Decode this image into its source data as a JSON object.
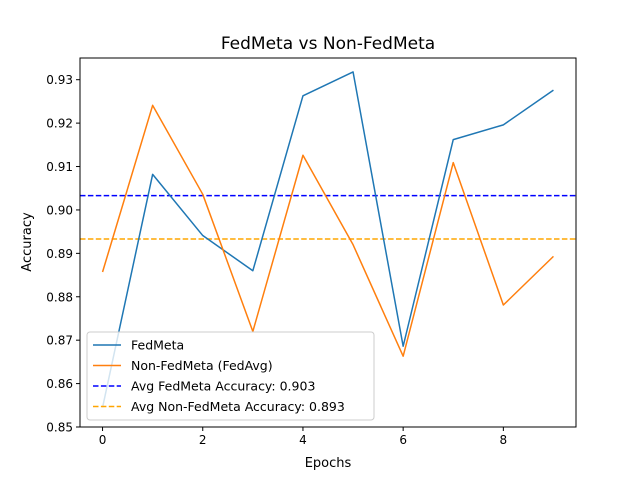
{
  "chart_data": {
    "type": "line",
    "title": "FedMeta vs Non-FedMeta",
    "xlabel": "Epochs",
    "ylabel": "Accuracy",
    "xlim": [
      -0.45,
      9.45
    ],
    "ylim": [
      0.85,
      0.935
    ],
    "xticks": [
      0,
      2,
      4,
      6,
      8
    ],
    "yticks": [
      0.85,
      0.86,
      0.87,
      0.88,
      0.89,
      0.9,
      0.91,
      0.92,
      0.93
    ],
    "x": [
      0,
      1,
      2,
      3,
      4,
      5,
      6,
      7,
      8,
      9
    ],
    "grid": false,
    "legend_position": "lower-left",
    "series": [
      {
        "name": "FedMeta",
        "color": "#1f77b4",
        "style": "solid",
        "values": [
          0.8545,
          0.9082,
          0.8941,
          0.886,
          0.9263,
          0.9318,
          0.8686,
          0.9162,
          0.9196,
          0.9276
        ]
      },
      {
        "name": "Non-FedMeta (FedAvg)",
        "color": "#ff7f0e",
        "style": "solid",
        "values": [
          0.8857,
          0.9241,
          0.9036,
          0.872,
          0.9126,
          0.892,
          0.8663,
          0.9109,
          0.8781,
          0.8893
        ]
      }
    ],
    "hlines": [
      {
        "name": "Avg FedMeta Accuracy: 0.903",
        "value": 0.9033,
        "color": "#0000ff",
        "style": "dashed"
      },
      {
        "name": "Avg Non-FedMeta Accuracy: 0.893",
        "value": 0.8933,
        "color": "#ffa500",
        "style": "dashed"
      }
    ]
  }
}
